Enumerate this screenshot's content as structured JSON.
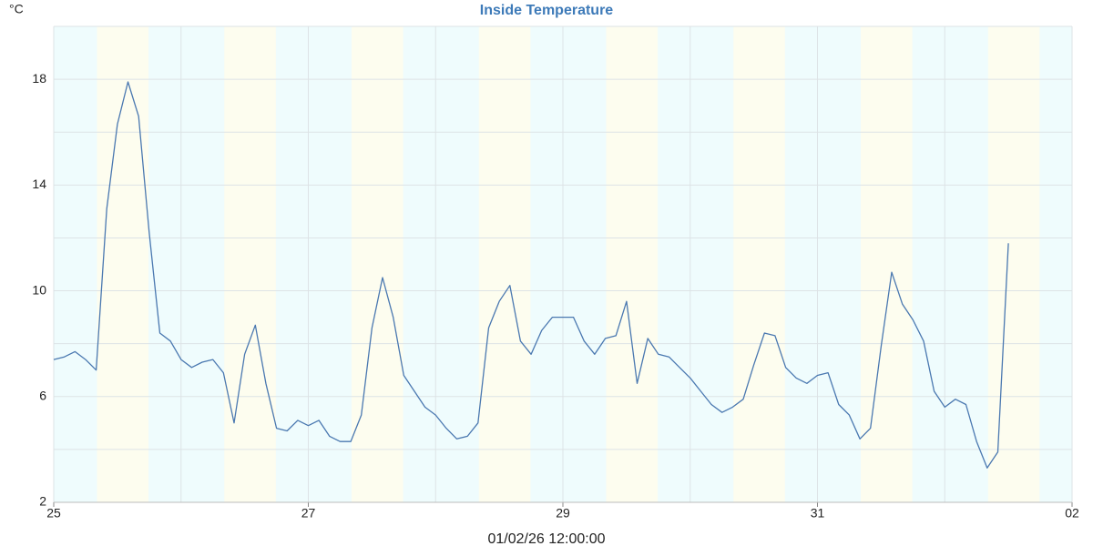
{
  "chart_data": {
    "type": "line",
    "title": "Inside Temperature",
    "y_label": "°C",
    "annotation": "01/02/26 12:00:00",
    "x": [
      "2026-01-25T00:00",
      "2026-01-25T02:00",
      "2026-01-25T04:00",
      "2026-01-25T06:00",
      "2026-01-25T08:00",
      "2026-01-25T10:00",
      "2026-01-25T12:00",
      "2026-01-25T14:00",
      "2026-01-25T16:00",
      "2026-01-25T18:00",
      "2026-01-25T20:00",
      "2026-01-25T22:00",
      "2026-01-26T00:00",
      "2026-01-26T02:00",
      "2026-01-26T04:00",
      "2026-01-26T06:00",
      "2026-01-26T08:00",
      "2026-01-26T10:00",
      "2026-01-26T12:00",
      "2026-01-26T14:00",
      "2026-01-26T16:00",
      "2026-01-26T18:00",
      "2026-01-26T20:00",
      "2026-01-26T22:00",
      "2026-01-27T00:00",
      "2026-01-27T02:00",
      "2026-01-27T04:00",
      "2026-01-27T06:00",
      "2026-01-27T08:00",
      "2026-01-27T10:00",
      "2026-01-27T12:00",
      "2026-01-27T14:00",
      "2026-01-27T16:00",
      "2026-01-27T18:00",
      "2026-01-27T20:00",
      "2026-01-27T22:00",
      "2026-01-28T00:00",
      "2026-01-28T02:00",
      "2026-01-28T04:00",
      "2026-01-28T06:00",
      "2026-01-28T08:00",
      "2026-01-28T10:00",
      "2026-01-28T12:00",
      "2026-01-28T14:00",
      "2026-01-28T16:00",
      "2026-01-28T18:00",
      "2026-01-28T20:00",
      "2026-01-28T22:00",
      "2026-01-29T00:00",
      "2026-01-29T02:00",
      "2026-01-29T04:00",
      "2026-01-29T06:00",
      "2026-01-29T08:00",
      "2026-01-29T10:00",
      "2026-01-29T12:00",
      "2026-01-29T14:00",
      "2026-01-29T16:00",
      "2026-01-29T18:00",
      "2026-01-29T20:00",
      "2026-01-29T22:00",
      "2026-01-30T00:00",
      "2026-01-30T02:00",
      "2026-01-30T04:00",
      "2026-01-30T06:00",
      "2026-01-30T08:00",
      "2026-01-30T10:00",
      "2026-01-30T12:00",
      "2026-01-30T14:00",
      "2026-01-30T16:00",
      "2026-01-30T18:00",
      "2026-01-30T20:00",
      "2026-01-30T22:00",
      "2026-01-31T00:00",
      "2026-01-31T02:00",
      "2026-01-31T04:00",
      "2026-01-31T06:00",
      "2026-01-31T08:00",
      "2026-01-31T10:00",
      "2026-01-31T12:00",
      "2026-01-31T14:00",
      "2026-01-31T16:00",
      "2026-01-31T18:00",
      "2026-01-31T20:00",
      "2026-01-31T22:00",
      "2026-02-01T00:00",
      "2026-02-01T02:00",
      "2026-02-01T04:00",
      "2026-02-01T06:00",
      "2026-02-01T08:00",
      "2026-02-01T10:00",
      "2026-02-01T12:00"
    ],
    "series": [
      {
        "name": "Inside Temperature",
        "color": "#4a78b0",
        "values": [
          7.4,
          7.5,
          7.7,
          7.4,
          7.0,
          13.1,
          16.3,
          17.9,
          16.6,
          12.2,
          8.4,
          8.1,
          7.4,
          7.1,
          7.3,
          7.4,
          6.9,
          5.0,
          7.6,
          8.7,
          6.5,
          4.8,
          4.7,
          5.1,
          4.9,
          5.1,
          4.5,
          4.3,
          4.3,
          5.3,
          8.6,
          10.5,
          9.0,
          6.8,
          6.2,
          5.6,
          5.3,
          4.8,
          4.4,
          4.5,
          5.0,
          8.6,
          9.6,
          10.2,
          8.1,
          7.6,
          8.5,
          9.0,
          9.0,
          9.0,
          8.1,
          7.6,
          8.2,
          8.3,
          9.6,
          6.5,
          8.2,
          7.6,
          7.5,
          7.1,
          6.7,
          6.2,
          5.7,
          5.4,
          5.6,
          5.9,
          7.2,
          8.4,
          8.3,
          7.1,
          6.7,
          6.5,
          6.8,
          6.9,
          5.7,
          5.3,
          4.4,
          4.8,
          7.9,
          10.7,
          9.5,
          8.9,
          8.1,
          6.2,
          5.6,
          5.9,
          5.7,
          4.3,
          3.3,
          3.9,
          11.8
        ]
      }
    ],
    "xlim": [
      "2026-01-25T00:00",
      "2026-02-02T00:00"
    ],
    "xticks": [
      {
        "value": "2026-01-25T00:00",
        "label": "25"
      },
      {
        "value": "2026-01-27T00:00",
        "label": "27"
      },
      {
        "value": "2026-01-29T00:00",
        "label": "29"
      },
      {
        "value": "2026-01-31T00:00",
        "label": "31"
      },
      {
        "value": "2026-02-02T00:00",
        "label": "02"
      }
    ],
    "x_grid": [
      "2026-01-25T00:00",
      "2026-01-26T00:00",
      "2026-01-27T00:00",
      "2026-01-28T00:00",
      "2026-01-29T00:00",
      "2026-01-30T00:00",
      "2026-01-31T00:00",
      "2026-02-01T00:00",
      "2026-02-02T00:00"
    ],
    "ylim": [
      2,
      20
    ],
    "yticks": [
      2,
      6,
      10,
      14,
      18
    ],
    "y_grid": [
      2,
      4,
      6,
      8,
      10,
      12,
      14,
      16,
      18,
      20
    ],
    "grid": true
  }
}
